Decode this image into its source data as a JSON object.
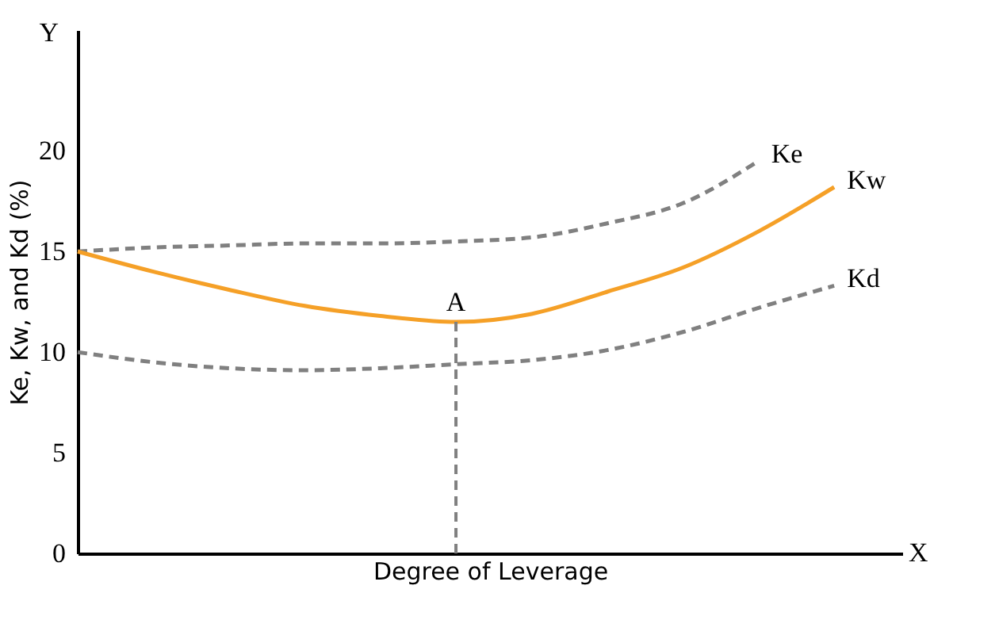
{
  "chart_data": {
    "type": "line",
    "xlabel": "Degree of Leverage",
    "ylabel": "Ke, Kw, and Kd (%)",
    "categories": [
      null,
      null,
      null,
      null,
      null,
      null,
      null,
      null,
      null,
      null,
      null
    ],
    "ylim": [
      0,
      26
    ],
    "yticks": [
      0,
      5,
      10,
      15,
      20
    ],
    "tick_labels": "y",
    "grid": false,
    "marker": "none",
    "series": [
      {
        "name": "Ke",
        "color": "#808080",
        "line_style": "dashed",
        "values": [
          15,
          15.2,
          15.3,
          15.4,
          15.4,
          15.5,
          15.7,
          16.4,
          17.4,
          19.5,
          null
        ]
      },
      {
        "name": "Kw",
        "color": "#f5a027",
        "line_style": "solid",
        "values": [
          15,
          14.0,
          13.1,
          12.3,
          11.8,
          11.5,
          11.9,
          13.0,
          14.2,
          16.0,
          18.2
        ]
      },
      {
        "name": "Kd",
        "color": "#808080",
        "line_style": "dashed",
        "values": [
          10,
          9.5,
          9.2,
          9.1,
          9.2,
          9.4,
          9.6,
          10.1,
          11.0,
          12.2,
          13.3
        ]
      }
    ],
    "annotations": [
      "Y",
      "X",
      {
        "text": "A",
        "y": 11.5
      }
    ]
  }
}
